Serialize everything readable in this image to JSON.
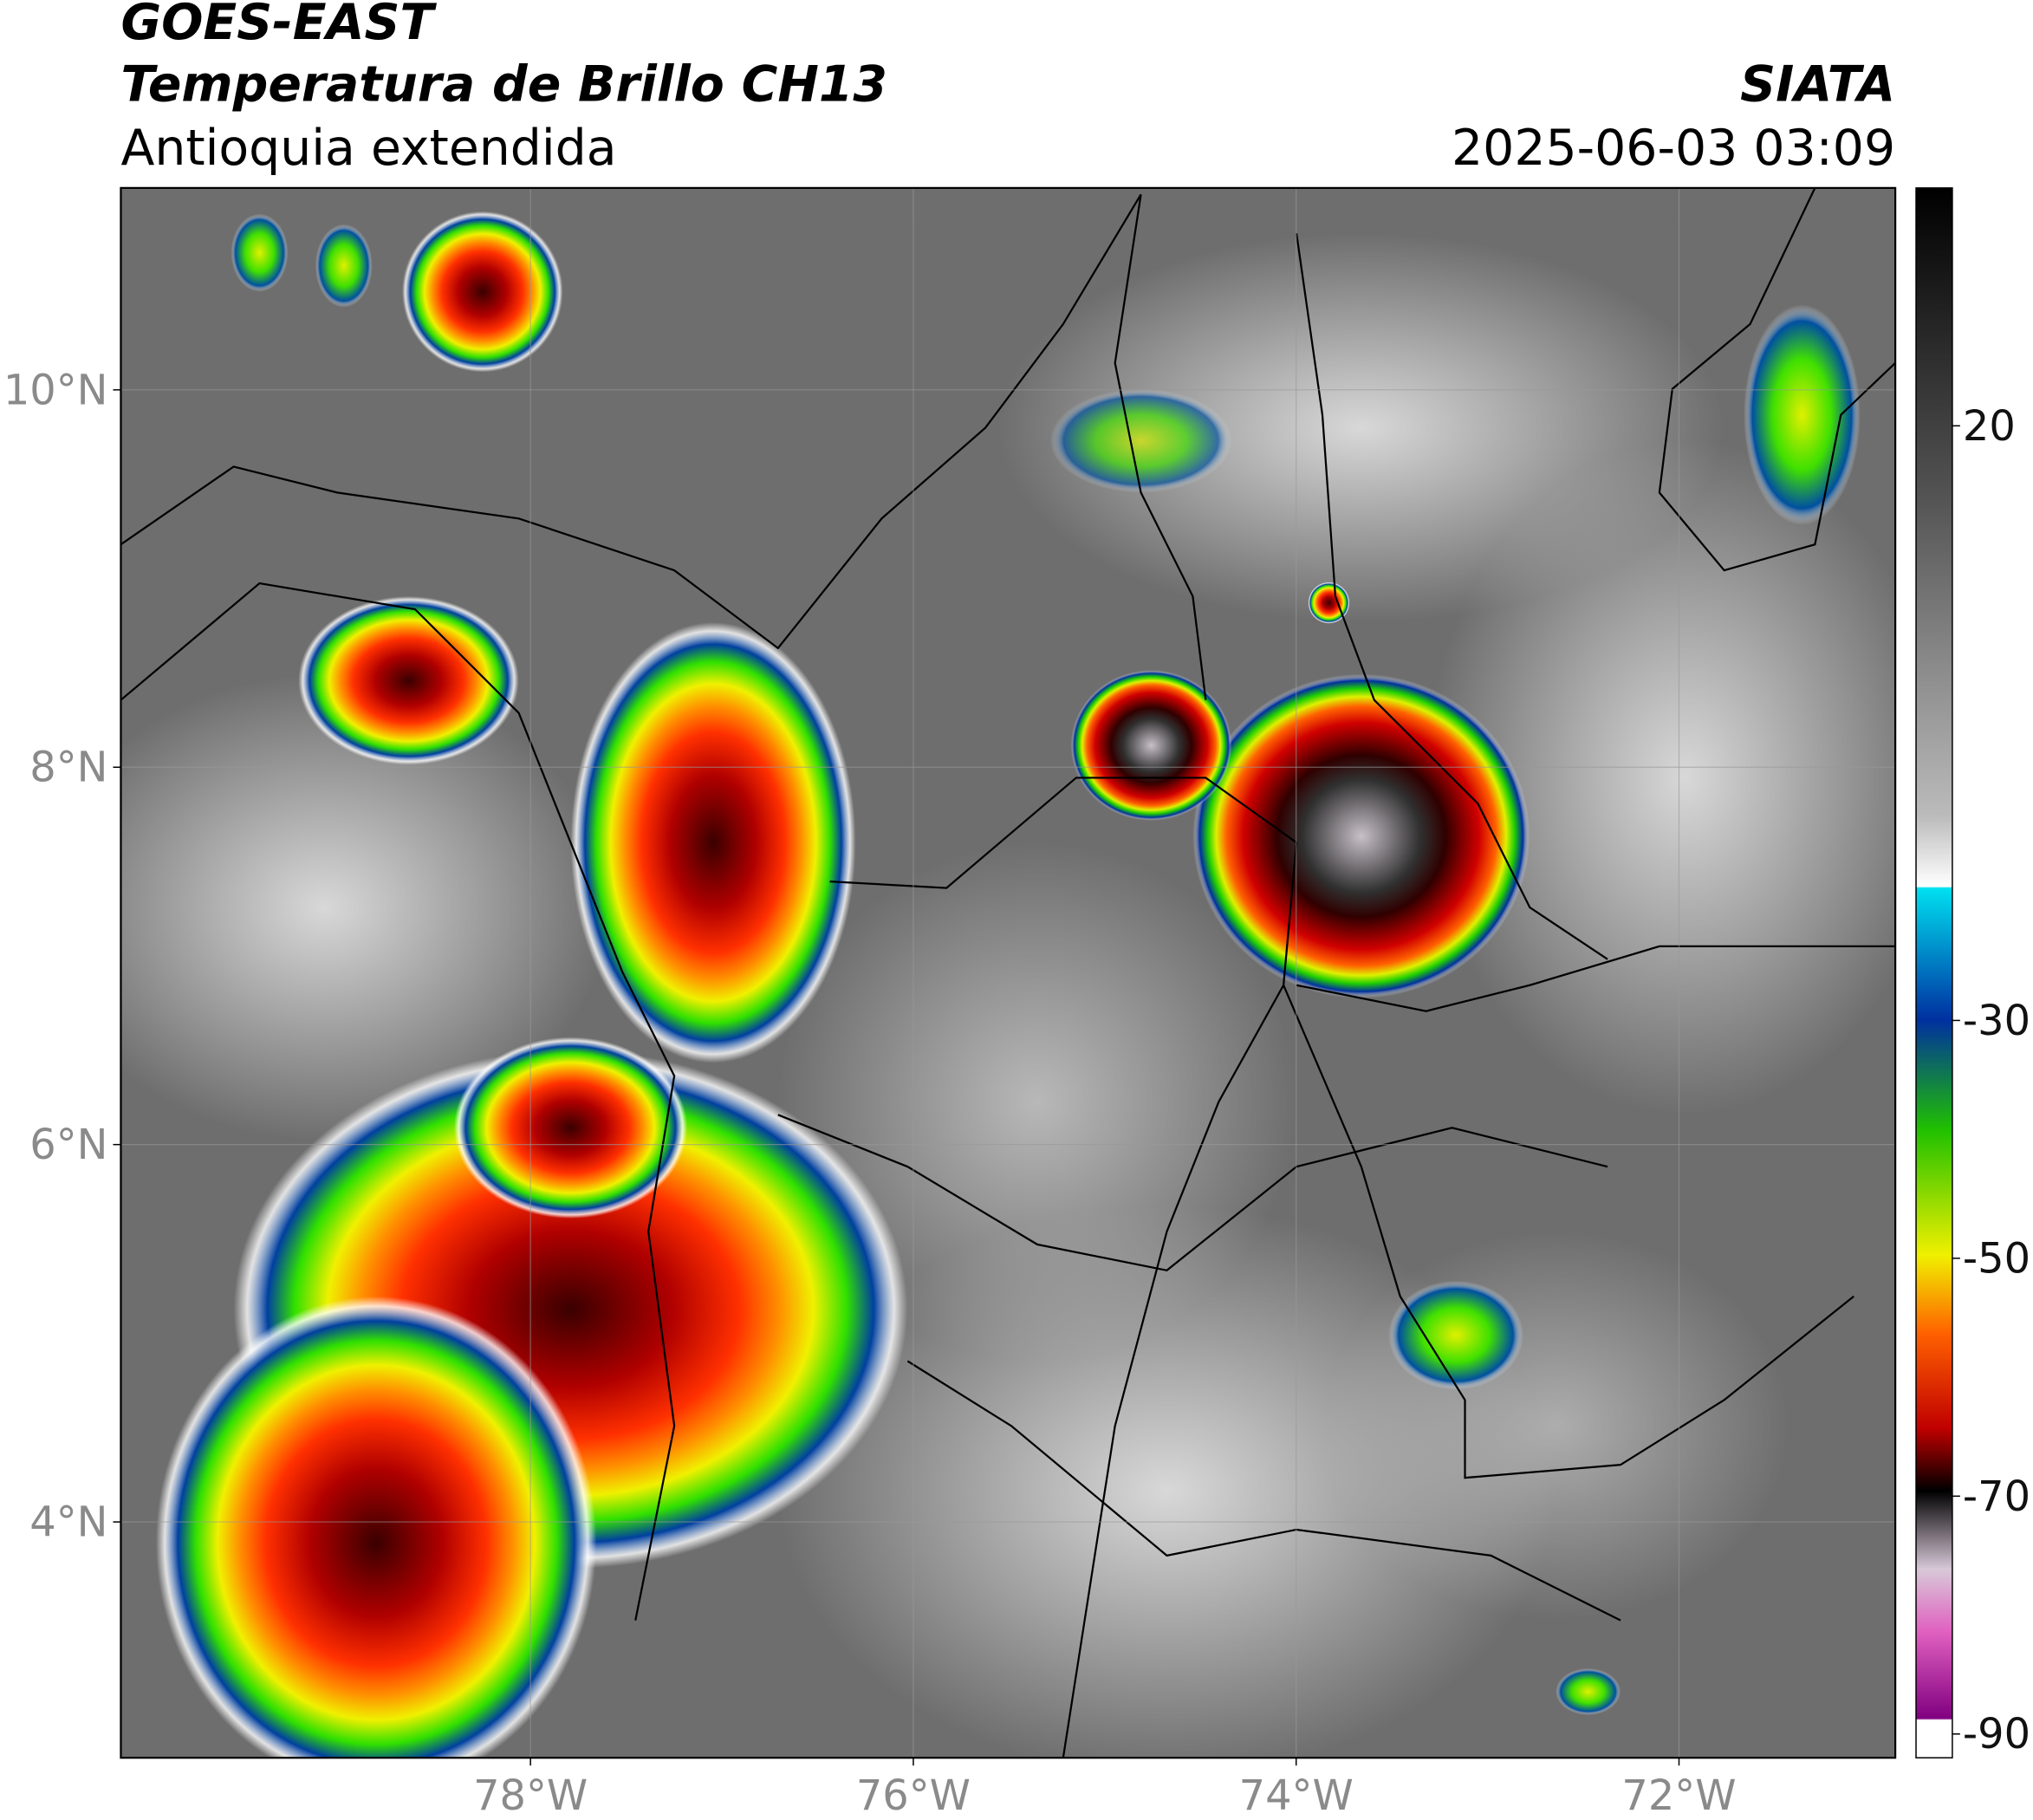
{
  "header": {
    "title": "GOES-EAST",
    "subtitle": "Temperatura de Brillo CH13",
    "region": "Antioquia extendida",
    "source": "SIATA",
    "datetime": "2025-06-03 03:09"
  },
  "map": {
    "lat_lim": [
      2.75,
      11.07
    ],
    "lon_lim": [
      -80.14,
      -70.87
    ],
    "lat_ticks": [
      {
        "value": 10,
        "label": "10°N"
      },
      {
        "value": 8,
        "label": "8°N"
      },
      {
        "value": 6,
        "label": "6°N"
      },
      {
        "value": 4,
        "label": "4°N"
      }
    ],
    "lon_ticks": [
      {
        "value": -78,
        "label": "78°W"
      },
      {
        "value": -76,
        "label": "76°W"
      },
      {
        "value": -74,
        "label": "74°W"
      },
      {
        "value": -72,
        "label": "72°W"
      }
    ]
  },
  "colorbar": {
    "lim": [
      -92,
      40
    ],
    "ticks": [
      20,
      -30,
      -50,
      -70,
      -90
    ]
  }
}
